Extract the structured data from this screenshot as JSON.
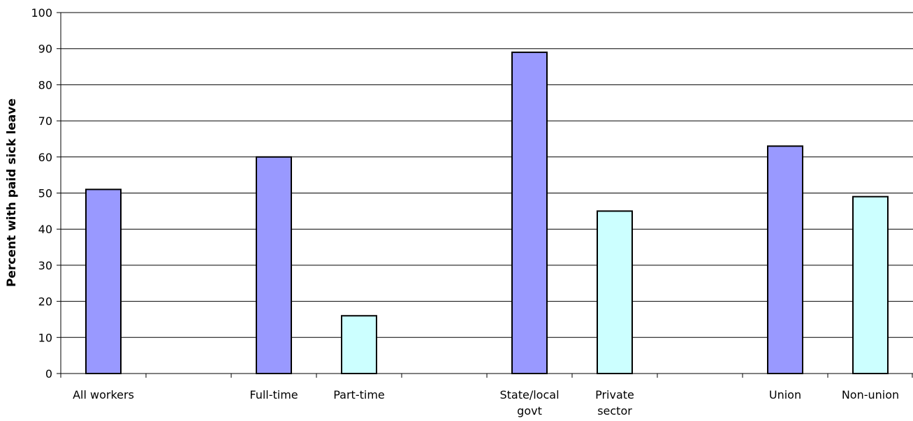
{
  "chart_data": {
    "type": "bar",
    "title": "",
    "xlabel": "",
    "ylabel": "Percent with paid sick leave",
    "ylim": [
      0,
      100
    ],
    "ytick_step": 10,
    "grid": true,
    "categories": [
      [
        "All workers"
      ],
      [
        ""
      ],
      [
        "Full-time"
      ],
      [
        "Part-time"
      ],
      [
        ""
      ],
      [
        "State/local",
        "govt"
      ],
      [
        "Private",
        "sector"
      ],
      [
        ""
      ],
      [
        "Union"
      ],
      [
        "Non-union"
      ]
    ],
    "values": [
      51,
      null,
      60,
      16,
      null,
      89,
      45,
      null,
      63,
      49
    ],
    "bar_groups": [
      "primary",
      null,
      "primary",
      "secondary",
      null,
      "primary",
      "secondary",
      null,
      "primary",
      "secondary"
    ],
    "colors": {
      "primary": "#9999ff",
      "secondary": "#ccffff",
      "outline": "#000000",
      "grid": "#000000"
    }
  }
}
